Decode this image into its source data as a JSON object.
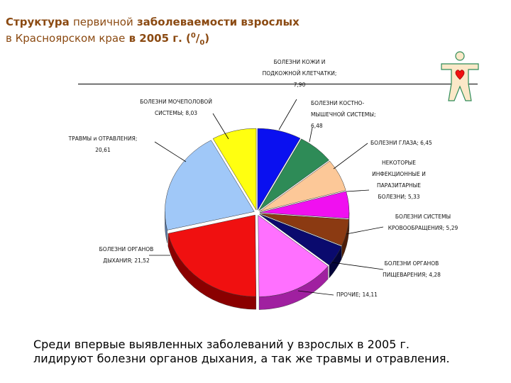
{
  "title": {
    "line1_a": "Структура",
    "line1_b": "первичной",
    "line1_c": "заболеваемости взрослых",
    "line2_a": "в Красноярском крае",
    "line2_b": "в 2005 г. (",
    "line2_sup": "0",
    "line2_sub": "0",
    "line2_end": ")"
  },
  "note": "Среди впервые выявленных заболеваний у взрослых в 2005 г. лидируют болезни органов дыхания, а так же травмы и отравления.",
  "chart_data": {
    "type": "pie",
    "title": "",
    "slices": [
      {
        "label_lines": [
          "БОЛЕЗНИ КОЖИ И",
          "ПОДКОЖНОЙ КЛЕТЧАТКИ;",
          "7,90"
        ],
        "value": 7.9,
        "color": "#0a10f0",
        "side": "#00008a"
      },
      {
        "label_lines": [
          "БОЛЕЗНИ КОСТНО-",
          "МЫШЕЧНОЙ СИСТЕМЫ;",
          "6,48"
        ],
        "value": 6.48,
        "color": "#2e8b57",
        "side": "#1a5235"
      },
      {
        "label_lines": [
          "БОЛЕЗНИ ГЛАЗА; 6,45"
        ],
        "value": 6.45,
        "color": "#fcc898",
        "side": "#b98a5e"
      },
      {
        "label_lines": [
          "НЕКОТОРЫЕ",
          "ИНФЕКЦИОННЫЕ И",
          "ПАРАЗИТАРНЫЕ",
          "БОЛЕЗНИ; 5,33"
        ],
        "value": 5.33,
        "color": "#f010f0",
        "side": "#900090"
      },
      {
        "label_lines": [
          "БОЛЕЗНИ СИСТЕМЫ",
          "КРОВООБРАЩЕНИЯ; 5,29"
        ],
        "value": 5.29,
        "color": "#8b3a12",
        "side": "#4e1e08"
      },
      {
        "label_lines": [
          "БОЛЕЗНИ ОРГАНОВ",
          "ПИЩЕВАРЕНИЯ; 4,28"
        ],
        "value": 4.28,
        "color": "#0a0a6e",
        "side": "#04043a"
      },
      {
        "label_lines": [
          "ПРОЧИЕ; 14,11"
        ],
        "value": 14.11,
        "color": "#ff70ff",
        "side": "#a020a0"
      },
      {
        "label_lines": [
          "БОЛЕЗНИ ОРГАНОВ",
          "ДЫХАНИЯ; 21,52"
        ],
        "value": 21.52,
        "color": "#f01010",
        "side": "#8a0000"
      },
      {
        "label_lines": [
          "ТРАВМЫ и ОТРАВЛЕНИЯ;",
          "20,61"
        ],
        "value": 20.61,
        "color": "#a0c8f8",
        "side": "#5a7aa8"
      },
      {
        "label_lines": [
          "БОЛЕЗНИ МОЧЕПОЛОВОЙ",
          "СИСТЕМЫ; 8,03"
        ],
        "value": 8.03,
        "color": "#ffff10",
        "side": "#9a9a00"
      }
    ]
  },
  "colors": {
    "title": "#8b4a12",
    "rule": "#000000"
  },
  "icon": "human-figure-heart-icon"
}
